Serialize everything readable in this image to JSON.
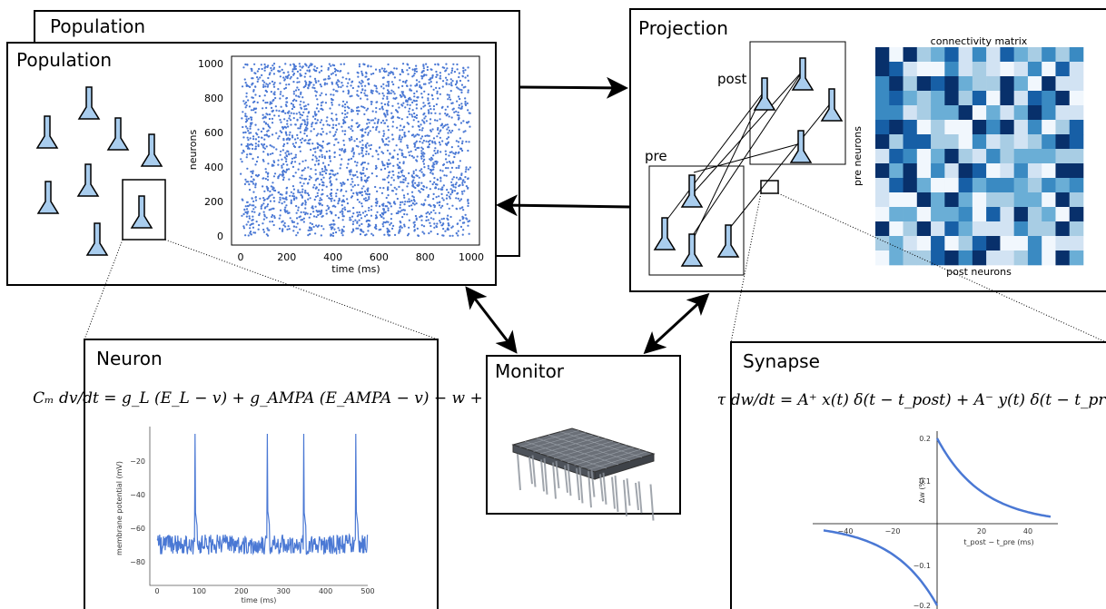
{
  "population_back": {
    "title": "Population"
  },
  "population": {
    "title": "Population",
    "raster": {
      "ylabel": "neurons",
      "xlabel": "time (ms)",
      "yticks": [
        "0",
        "200",
        "400",
        "600",
        "800",
        "1000"
      ],
      "xticks": [
        "0",
        "200",
        "400",
        "600",
        "800",
        "1000"
      ]
    }
  },
  "projection": {
    "title": "Projection",
    "post_label": "post",
    "pre_label": "pre",
    "matrix": {
      "title": "connectivity matrix",
      "ylabel": "pre neurons",
      "xlabel": "post neurons"
    }
  },
  "neuron": {
    "title": "Neuron",
    "equation": "Cₘ dv/dt = g_L (E_L − v) + g_AMPA (E_AMPA − v) − w + I",
    "plot": {
      "ylabel": "membrane potential (mV)",
      "xlabel": "time (ms)",
      "yticks": [
        "−20",
        "−40",
        "−60",
        "−80"
      ],
      "xticks": [
        "0",
        "100",
        "200",
        "300",
        "400",
        "500"
      ]
    }
  },
  "monitor": {
    "title": "Monitor"
  },
  "synapse": {
    "title": "Synapse",
    "equation": "τ dw/dt = A⁺ x(t) δ(t − t_post) + A⁻ y(t) δ(t − t_pre)",
    "plot": {
      "ylabel": "Δw (%)",
      "xlabel": "t_post − t_pre (ms)",
      "yticks": [
        "0.2",
        "0.1",
        "−0.1",
        "−0.2"
      ],
      "xticks": [
        "−40",
        "−20",
        "20",
        "40"
      ]
    }
  }
}
